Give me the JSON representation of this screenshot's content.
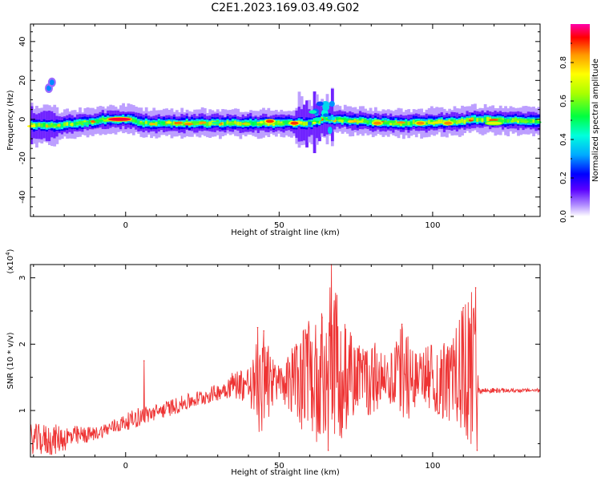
{
  "title": "C2E1.2023.169.03.49.G02",
  "chart_data": [
    {
      "type": "heatmap",
      "title": "C2E1.2023.169.03.49.G02",
      "xlabel": "Height of straight line (km)",
      "ylabel": "Frequency (Hz)",
      "xlim": [
        -31,
        135
      ],
      "ylim": [
        -50,
        49
      ],
      "x_ticks": [
        "0",
        "50",
        "100"
      ],
      "y_ticks": [
        "40",
        "20",
        "0",
        "-20",
        "-40"
      ],
      "colorbar": {
        "label": "Normalized spectral amplitude",
        "range": [
          0.0,
          1.0
        ],
        "ticks": [
          "0.0",
          "0.2",
          "0.4",
          "0.6",
          "0.8"
        ],
        "colors": [
          "#ffffff",
          "#b08cff",
          "#5a00ff",
          "#0000ff",
          "#00aaff",
          "#00ffdd",
          "#00ff40",
          "#aaff00",
          "#ffff00",
          "#ff9900",
          "#ff0000",
          "#ff00aa"
        ]
      },
      "ridge_center_hz": [
        {
          "x": -31,
          "y": -3
        },
        {
          "x": -20,
          "y": -3
        },
        {
          "x": -10,
          "y": -1
        },
        {
          "x": -6,
          "y": 0
        },
        {
          "x": 1,
          "y": 0
        },
        {
          "x": 5,
          "y": -2
        },
        {
          "x": 30,
          "y": -2
        },
        {
          "x": 60,
          "y": -2
        },
        {
          "x": 65,
          "y": 0
        },
        {
          "x": 90,
          "y": -2
        },
        {
          "x": 110,
          "y": -1
        },
        {
          "x": 113,
          "y": 0
        },
        {
          "x": 135,
          "y": -1
        }
      ],
      "hot_spots": [
        {
          "x": -2,
          "y": 0,
          "amp": 0.95
        },
        {
          "x": 47,
          "y": -1,
          "amp": 0.9
        },
        {
          "x": 55,
          "y": -2,
          "amp": 0.9
        },
        {
          "x": 82,
          "y": -2,
          "amp": 0.85
        },
        {
          "x": 96,
          "y": -2,
          "amp": 0.85
        },
        {
          "x": 105,
          "y": -2,
          "amp": 0.85
        },
        {
          "x": 120,
          "y": -2,
          "amp": 0.7
        }
      ],
      "isolated_blobs": [
        {
          "x": -25,
          "y": 16,
          "amp": 0.3
        },
        {
          "x": -24,
          "y": 19,
          "amp": 0.3
        }
      ]
    },
    {
      "type": "line",
      "xlabel": "Height of straight line (km)",
      "ylabel": "SNR (10 * v/v)",
      "y_multiplier": "(x10",
      "y_multiplier_exp": "4",
      "xlim": [
        -31,
        135
      ],
      "ylim": [
        0.3,
        3.2
      ],
      "x_ticks": [
        "0",
        "50",
        "100"
      ],
      "y_ticks": [
        "3",
        "2",
        "1"
      ],
      "line_color": "#ee3333",
      "envelope": [
        {
          "x": -31,
          "lo": 0.35,
          "hi": 0.8
        },
        {
          "x": -25,
          "lo": 0.3,
          "hi": 0.8
        },
        {
          "x": -10,
          "lo": 0.55,
          "hi": 0.75
        },
        {
          "x": 0,
          "lo": 0.7,
          "hi": 0.95
        },
        {
          "x": 4,
          "lo": 0.75,
          "hi": 1.05
        },
        {
          "x": 10,
          "lo": 0.85,
          "hi": 1.1
        },
        {
          "x": 20,
          "lo": 1.0,
          "hi": 1.25
        },
        {
          "x": 30,
          "lo": 1.15,
          "hi": 1.4
        },
        {
          "x": 35,
          "lo": 1.2,
          "hi": 1.6
        },
        {
          "x": 40,
          "lo": 1.1,
          "hi": 1.7
        },
        {
          "x": 44,
          "lo": 0.6,
          "hi": 2.2
        },
        {
          "x": 50,
          "lo": 1.2,
          "hi": 1.7
        },
        {
          "x": 55,
          "lo": 0.9,
          "hi": 2.0
        },
        {
          "x": 60,
          "lo": 0.4,
          "hi": 2.4
        },
        {
          "x": 65,
          "lo": 0.35,
          "hi": 2.5
        },
        {
          "x": 67,
          "lo": 0.35,
          "hi": 3.2
        },
        {
          "x": 70,
          "lo": 0.5,
          "hi": 2.6
        },
        {
          "x": 75,
          "lo": 1.0,
          "hi": 2.0
        },
        {
          "x": 80,
          "lo": 0.9,
          "hi": 2.1
        },
        {
          "x": 85,
          "lo": 1.2,
          "hi": 1.8
        },
        {
          "x": 90,
          "lo": 0.6,
          "hi": 2.3
        },
        {
          "x": 95,
          "lo": 1.1,
          "hi": 1.9
        },
        {
          "x": 100,
          "lo": 1.0,
          "hi": 2.0
        },
        {
          "x": 105,
          "lo": 0.8,
          "hi": 2.1
        },
        {
          "x": 110,
          "lo": 0.6,
          "hi": 2.6
        },
        {
          "x": 113,
          "lo": 0.4,
          "hi": 2.9
        },
        {
          "x": 115,
          "lo": 1.25,
          "hi": 1.35
        },
        {
          "x": 125,
          "lo": 1.27,
          "hi": 1.33
        },
        {
          "x": 135,
          "lo": 1.28,
          "hi": 1.33
        }
      ],
      "spikes": [
        {
          "x": 6,
          "y": 1.75
        },
        {
          "x": 43,
          "y": 2.25
        },
        {
          "x": 45,
          "y": 2.2
        },
        {
          "x": 64,
          "y": 2.4
        },
        {
          "x": 67,
          "y": 3.2
        },
        {
          "x": 66,
          "y": 0.4
        },
        {
          "x": 90,
          "y": 2.3
        },
        {
          "x": 110,
          "y": 2.55
        },
        {
          "x": 114,
          "y": 2.85
        },
        {
          "x": 114.5,
          "y": 0.4
        }
      ]
    }
  ]
}
